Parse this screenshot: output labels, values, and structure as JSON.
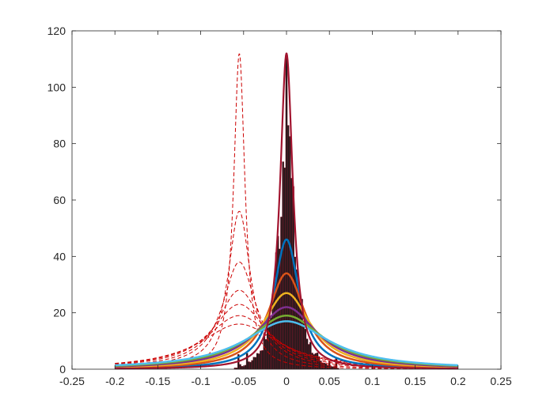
{
  "chart_data": {
    "type": "line",
    "title": "",
    "xlabel": "",
    "ylabel": "",
    "xlim": [
      -0.25,
      0.25
    ],
    "ylim": [
      0,
      120
    ],
    "xticks": [
      -0.25,
      -0.2,
      -0.15,
      -0.1,
      -0.05,
      0,
      0.05,
      0.1,
      0.15,
      0.2,
      0.25
    ],
    "xtick_labels": [
      "-0.25",
      "-0.2",
      "-0.15",
      "-0.1",
      "-0.05",
      "0",
      "0.05",
      "0.1",
      "0.15",
      "0.2",
      "0.25"
    ],
    "yticks": [
      0,
      20,
      40,
      60,
      80,
      100,
      120
    ],
    "ytick_labels": [
      "0",
      "20",
      "40",
      "60",
      "80",
      "100",
      "120"
    ],
    "grid": false,
    "curves_x_range": [
      -0.2,
      0.2
    ],
    "histogram": {
      "color": "#1a1a1a",
      "edge_color": "#a2142f",
      "bin_width": 0.002,
      "peak_center": 0,
      "peak_height": 112,
      "half_width": 0.011,
      "tail_height": 6
    },
    "series": [
      {
        "center": 0,
        "peak": 112,
        "width": 0.009,
        "color": "#a2142f",
        "dashed": false,
        "stroke": 2.2
      },
      {
        "center": 0,
        "peak": 46,
        "width": 0.018,
        "color": "#0072bd",
        "dashed": false,
        "stroke": 2.5
      },
      {
        "center": 0,
        "peak": 34,
        "width": 0.026,
        "color": "#d95319",
        "dashed": false,
        "stroke": 2.5
      },
      {
        "center": 0,
        "peak": 27,
        "width": 0.034,
        "color": "#edb120",
        "dashed": false,
        "stroke": 2.5
      },
      {
        "center": 0,
        "peak": 22,
        "width": 0.043,
        "color": "#7e2f8e",
        "dashed": false,
        "stroke": 2.5
      },
      {
        "center": 0,
        "peak": 19,
        "width": 0.052,
        "color": "#77ac30",
        "dashed": false,
        "stroke": 2.5
      },
      {
        "center": 0,
        "peak": 17,
        "width": 0.06,
        "color": "#4dbeee",
        "dashed": false,
        "stroke": 2.5
      },
      {
        "center": -0.055,
        "peak": 112,
        "width": 0.008,
        "color": "#cc0000",
        "dashed": true,
        "stroke": 1
      },
      {
        "center": -0.055,
        "peak": 56,
        "width": 0.016,
        "color": "#cc0000",
        "dashed": true,
        "stroke": 1
      },
      {
        "center": -0.055,
        "peak": 38,
        "width": 0.024,
        "color": "#cc0000",
        "dashed": true,
        "stroke": 1
      },
      {
        "center": -0.055,
        "peak": 28,
        "width": 0.032,
        "color": "#cc0000",
        "dashed": true,
        "stroke": 1
      },
      {
        "center": -0.055,
        "peak": 23,
        "width": 0.04,
        "color": "#cc0000",
        "dashed": true,
        "stroke": 1
      },
      {
        "center": -0.055,
        "peak": 19,
        "width": 0.048,
        "color": "#cc0000",
        "dashed": true,
        "stroke": 1
      },
      {
        "center": -0.055,
        "peak": 16,
        "width": 0.056,
        "color": "#cc0000",
        "dashed": true,
        "stroke": 1
      }
    ]
  }
}
